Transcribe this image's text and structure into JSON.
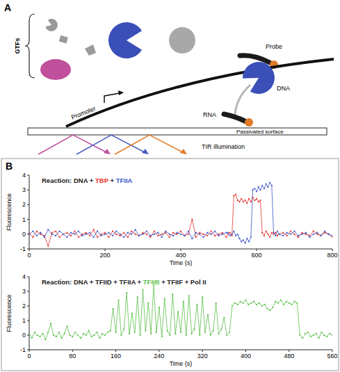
{
  "diagram": {
    "panel": "A",
    "gtfs_label": "GTFs",
    "promoter_label": "Promoter",
    "dna_label": "DNA",
    "rna_label": "RNA",
    "probe_label": "Probe",
    "surface_label": "Passivated surface",
    "illumination_label": "TIR illumination"
  },
  "chart_panel": "B",
  "chart_data": [
    {
      "type": "line",
      "xlabel": "Time (s)",
      "ylabel": "Fluorescence",
      "grid": false,
      "annotation": [
        {
          "text": "Reaction: DNA + ",
          "color": "#222222"
        },
        {
          "text": "TBP",
          "color": "#e8302a"
        },
        {
          "text": " + ",
          "color": "#222222"
        },
        {
          "text": "TFIIA",
          "color": "#3a55c8"
        }
      ],
      "xlim": [
        0,
        800
      ],
      "xticks": [
        0,
        200,
        400,
        600,
        800
      ],
      "ylim": [
        -1,
        4
      ],
      "yticks": [
        -1,
        0,
        1,
        2,
        3,
        4
      ],
      "x": [
        0,
        10,
        20,
        30,
        40,
        50,
        60,
        70,
        80,
        90,
        100,
        110,
        120,
        130,
        140,
        150,
        160,
        170,
        180,
        190,
        200,
        210,
        220,
        230,
        240,
        250,
        260,
        270,
        280,
        290,
        300,
        310,
        320,
        330,
        340,
        350,
        360,
        370,
        380,
        390,
        400,
        410,
        420,
        430,
        440,
        450,
        460,
        470,
        480,
        490,
        500,
        510,
        520,
        525,
        530,
        535,
        540,
        545,
        550,
        555,
        560,
        565,
        570,
        575,
        580,
        585,
        590,
        595,
        600,
        605,
        610,
        615,
        620,
        625,
        630,
        635,
        640,
        645,
        650,
        655,
        660,
        670,
        680,
        690,
        700,
        710,
        720,
        730,
        740,
        750,
        760,
        770,
        780,
        790,
        800
      ],
      "series": [
        {
          "name": "TBP",
          "color": "#e8302a",
          "marker": "circle",
          "values": [
            0.1,
            -0.2,
            0.2,
            0,
            -0.1,
            -0.8,
            0.1,
            0.2,
            -0.2,
            0,
            0.1,
            -0.1,
            0.2,
            -0.2,
            0,
            0.1,
            -0.1,
            0.3,
            -0.2,
            0,
            0.1,
            -0.2,
            0.2,
            0,
            -0.1,
            0.1,
            -0.2,
            0.2,
            0,
            -0.1,
            0.1,
            0,
            -0.2,
            0.2,
            -0.1,
            0,
            0.1,
            -0.2,
            0.1,
            0,
            0.2,
            -0.1,
            0,
            1.0,
            -0.2,
            0.1,
            0,
            -0.1,
            0.2,
            -0.1,
            0,
            0.1,
            -0.2,
            0,
            0.1,
            -0.1,
            2.6,
            2.7,
            2.3,
            2.2,
            2.4,
            2.2,
            2.3,
            2.1,
            2.4,
            2.2,
            2.5,
            2.3,
            2.4,
            2.2,
            2.3,
            0.1,
            -0.1,
            0.2,
            0,
            -0.2,
            0.1,
            0,
            0.1,
            -0.1,
            0,
            0.1,
            -0.1,
            0.2,
            0,
            -0.2,
            0.1,
            0,
            -0.1,
            0.2,
            0,
            -0.1,
            0.1,
            0,
            -0.2
          ]
        },
        {
          "name": "TFIIA",
          "color": "#3a55c8",
          "marker": "circle",
          "values": [
            0,
            0.2,
            -0.1,
            0.1,
            -0.2,
            0.3,
            0,
            -0.1,
            0.2,
            0,
            -0.2,
            0.1,
            0,
            0.2,
            -0.1,
            0,
            0.1,
            -0.2,
            0.2,
            -0.1,
            0,
            0.1,
            -0.1,
            0.2,
            0,
            -0.2,
            0.1,
            0,
            0.3,
            -0.1,
            0,
            0.2,
            -0.1,
            0,
            0.1,
            -0.2,
            0.2,
            0,
            -0.1,
            0.1,
            0,
            -0.1,
            0.2,
            -0.3,
            0.1,
            0,
            -0.2,
            0.1,
            0,
            0.2,
            -0.1,
            0,
            0.1,
            0.1,
            -0.1,
            0,
            0.2,
            -0.1,
            0,
            -0.3,
            -0.5,
            -0.4,
            -0.6,
            -0.3,
            -0.5,
            -0.2,
            3.0,
            3.1,
            2.9,
            3.2,
            3.0,
            3.3,
            3.1,
            3.4,
            3.2,
            3.5,
            3.3,
            0.1,
            -0.1,
            0.2,
            0,
            -0.1,
            0.1,
            0,
            0.2,
            -0.1,
            0,
            0.1,
            -0.2,
            0,
            0.1,
            -0.1,
            0.2,
            0,
            -0.1
          ]
        }
      ]
    },
    {
      "type": "line",
      "xlabel": "Time (s)",
      "ylabel": "Fluorescence",
      "grid": false,
      "annotation": [
        {
          "text": "Reaction: DNA + TFIID + TFIIA + ",
          "color": "#222222"
        },
        {
          "text": "TFIIB",
          "color": "#5cc04a"
        },
        {
          "text": " + TFIIF + Pol II",
          "color": "#222222"
        }
      ],
      "xlim": [
        0,
        560
      ],
      "xticks": [
        0,
        80,
        160,
        240,
        320,
        400,
        480,
        560
      ],
      "ylim": [
        -1,
        4
      ],
      "yticks": [
        -1,
        0,
        1,
        2,
        3,
        4
      ],
      "x": [
        0,
        5,
        10,
        15,
        20,
        25,
        30,
        35,
        40,
        45,
        50,
        55,
        60,
        65,
        70,
        75,
        80,
        85,
        90,
        95,
        100,
        105,
        110,
        115,
        120,
        125,
        130,
        135,
        140,
        145,
        150,
        155,
        160,
        165,
        170,
        175,
        180,
        185,
        190,
        195,
        200,
        205,
        210,
        215,
        220,
        225,
        230,
        235,
        240,
        245,
        250,
        255,
        260,
        265,
        270,
        275,
        280,
        285,
        290,
        295,
        300,
        305,
        310,
        315,
        320,
        325,
        330,
        335,
        340,
        345,
        350,
        355,
        360,
        365,
        370,
        375,
        380,
        385,
        390,
        395,
        400,
        405,
        410,
        415,
        420,
        425,
        430,
        435,
        440,
        445,
        450,
        455,
        460,
        465,
        470,
        475,
        480,
        485,
        490,
        495,
        500,
        505,
        510,
        515,
        520,
        525,
        530,
        535,
        540,
        545,
        550,
        555,
        560
      ],
      "series": [
        {
          "name": "TFIIB",
          "color": "#5cc04a",
          "marker": "circle",
          "values": [
            0.1,
            -0.2,
            0.2,
            0,
            -0.1,
            0.1,
            -0.3,
            0.2,
            0.8,
            0,
            -0.1,
            0.2,
            -0.2,
            0.1,
            0.6,
            0,
            -0.1,
            0.2,
            0,
            -0.2,
            0.1,
            0,
            0.3,
            -0.1,
            0,
            0.2,
            -0.2,
            0.1,
            0,
            0.2,
            0.3,
            1.8,
            0.2,
            2.4,
            0,
            0.4,
            2.9,
            0.1,
            1.5,
            0.2,
            2.6,
            0,
            3.1,
            0.3,
            2.2,
            0.1,
            3.4,
            0.2,
            1.9,
            -0.1,
            2.5,
            0.3,
            0,
            2.8,
            0.1,
            1.6,
            0.2,
            2.3,
            0,
            2.7,
            0.1,
            0.4,
            2.1,
            0,
            2.6,
            0.2,
            1.4,
            0,
            0.3,
            2.2,
            0.1,
            0.4,
            1.2,
            0,
            0.2,
            2.0,
            2.2,
            2.1,
            2.3,
            2.2,
            2.4,
            2.1,
            2.2,
            2.3,
            2.1,
            2.2,
            2.0,
            2.1,
            1.8,
            1.7,
            1.9,
            2.3,
            2.2,
            2.4,
            2.1,
            2.3,
            2.2,
            2.1,
            2.3,
            2.2,
            0,
            -0.2,
            0.1,
            0.2,
            -0.1,
            0,
            0.1,
            -0.2,
            0.2,
            0,
            -0.1,
            0.1,
            0
          ]
        }
      ]
    }
  ]
}
